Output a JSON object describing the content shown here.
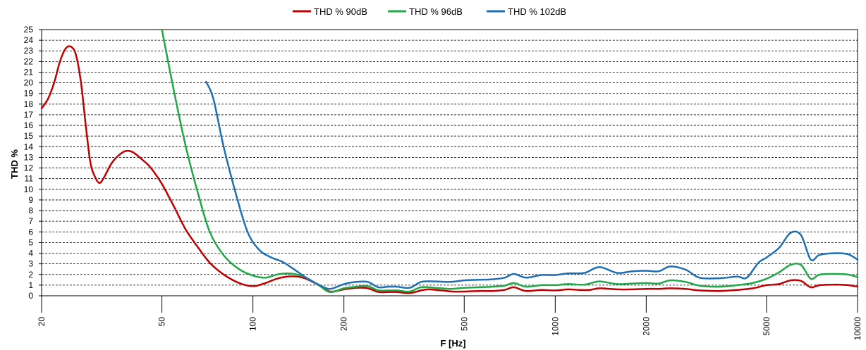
{
  "chart_data": {
    "type": "line",
    "xlabel": "F [Hz]",
    "ylabel": "THD %",
    "xscale": "log",
    "xlim": [
      20,
      10000
    ],
    "ylim": [
      0,
      25
    ],
    "xticks": [
      20,
      50,
      100,
      200,
      500,
      1000,
      2000,
      5000,
      10000
    ],
    "yticks": [
      0,
      1,
      2,
      3,
      4,
      5,
      6,
      7,
      8,
      9,
      10,
      11,
      12,
      13,
      14,
      15,
      16,
      17,
      18,
      19,
      20,
      21,
      22,
      23,
      24,
      25
    ],
    "grid": "horizontal-dashed",
    "legend_position": "top-center",
    "series": [
      {
        "name": "THD % 90dB",
        "color": "#c00000",
        "points": [
          [
            20,
            17.6
          ],
          [
            21,
            18.5
          ],
          [
            22,
            20
          ],
          [
            23,
            22
          ],
          [
            24,
            23.2
          ],
          [
            25,
            23.4
          ],
          [
            26,
            22.6
          ],
          [
            27,
            20
          ],
          [
            28,
            16
          ],
          [
            29,
            12.5
          ],
          [
            30,
            11.2
          ],
          [
            31,
            10.6
          ],
          [
            32,
            11.0
          ],
          [
            34,
            12.4
          ],
          [
            36,
            13.2
          ],
          [
            38,
            13.6
          ],
          [
            40,
            13.5
          ],
          [
            43,
            12.8
          ],
          [
            46,
            12
          ],
          [
            50,
            10.5
          ],
          [
            55,
            8.3
          ],
          [
            60,
            6.2
          ],
          [
            66,
            4.5
          ],
          [
            72,
            3.1
          ],
          [
            80,
            2
          ],
          [
            90,
            1.2
          ],
          [
            100,
            0.9
          ],
          [
            110,
            1.2
          ],
          [
            120,
            1.6
          ],
          [
            130,
            1.8
          ],
          [
            140,
            1.8
          ],
          [
            150,
            1.6
          ],
          [
            165,
            1
          ],
          [
            180,
            0.4
          ],
          [
            200,
            0.6
          ],
          [
            220,
            0.75
          ],
          [
            240,
            0.7
          ],
          [
            260,
            0.35
          ],
          [
            280,
            0.35
          ],
          [
            300,
            0.35
          ],
          [
            330,
            0.25
          ],
          [
            360,
            0.5
          ],
          [
            380,
            0.6
          ],
          [
            420,
            0.5
          ],
          [
            460,
            0.4
          ],
          [
            500,
            0.4
          ],
          [
            560,
            0.45
          ],
          [
            620,
            0.45
          ],
          [
            680,
            0.55
          ],
          [
            730,
            0.8
          ],
          [
            800,
            0.45
          ],
          [
            900,
            0.55
          ],
          [
            1000,
            0.5
          ],
          [
            1100,
            0.6
          ],
          [
            1200,
            0.55
          ],
          [
            1300,
            0.55
          ],
          [
            1400,
            0.7
          ],
          [
            1600,
            0.6
          ],
          [
            1800,
            0.6
          ],
          [
            2000,
            0.65
          ],
          [
            2200,
            0.65
          ],
          [
            2400,
            0.7
          ],
          [
            2700,
            0.65
          ],
          [
            3000,
            0.5
          ],
          [
            3500,
            0.45
          ],
          [
            4000,
            0.55
          ],
          [
            4500,
            0.7
          ],
          [
            5000,
            1
          ],
          [
            5500,
            1.1
          ],
          [
            6000,
            1.45
          ],
          [
            6500,
            1.4
          ],
          [
            7000,
            0.8
          ],
          [
            7500,
            1
          ],
          [
            8500,
            1.05
          ],
          [
            9300,
            1
          ],
          [
            10000,
            0.85
          ]
        ]
      },
      {
        "name": "THD % 96dB",
        "color": "#1fa845",
        "points": [
          [
            50,
            25
          ],
          [
            55,
            19
          ],
          [
            60,
            14
          ],
          [
            66,
            9.5
          ],
          [
            72,
            6
          ],
          [
            80,
            3.8
          ],
          [
            90,
            2.5
          ],
          [
            100,
            1.9
          ],
          [
            110,
            1.7
          ],
          [
            120,
            2
          ],
          [
            130,
            2.1
          ],
          [
            140,
            2
          ],
          [
            150,
            1.7
          ],
          [
            165,
            1
          ],
          [
            180,
            0.35
          ],
          [
            200,
            0.7
          ],
          [
            220,
            0.85
          ],
          [
            240,
            0.9
          ],
          [
            260,
            0.5
          ],
          [
            280,
            0.5
          ],
          [
            300,
            0.5
          ],
          [
            330,
            0.4
          ],
          [
            360,
            0.8
          ],
          [
            400,
            0.75
          ],
          [
            450,
            0.65
          ],
          [
            500,
            0.75
          ],
          [
            560,
            0.8
          ],
          [
            620,
            0.85
          ],
          [
            680,
            0.95
          ],
          [
            730,
            1.2
          ],
          [
            800,
            0.85
          ],
          [
            900,
            1
          ],
          [
            1000,
            1
          ],
          [
            1100,
            1.1
          ],
          [
            1250,
            1.05
          ],
          [
            1400,
            1.35
          ],
          [
            1600,
            1.1
          ],
          [
            1800,
            1.15
          ],
          [
            2000,
            1.2
          ],
          [
            2200,
            1.15
          ],
          [
            2400,
            1.45
          ],
          [
            2700,
            1.3
          ],
          [
            3000,
            0.95
          ],
          [
            3500,
            0.85
          ],
          [
            4000,
            1
          ],
          [
            4500,
            1.2
          ],
          [
            5000,
            1.6
          ],
          [
            5500,
            2.2
          ],
          [
            6000,
            2.9
          ],
          [
            6500,
            2.9
          ],
          [
            7000,
            1.6
          ],
          [
            7500,
            2
          ],
          [
            8500,
            2.05
          ],
          [
            9300,
            2
          ],
          [
            10000,
            1.75
          ]
        ]
      },
      {
        "name": "THD % 102dB",
        "color": "#1f6fb4",
        "points": [
          [
            70,
            20.1
          ],
          [
            74,
            18.5
          ],
          [
            80,
            14
          ],
          [
            88,
            9.5
          ],
          [
            96,
            6
          ],
          [
            105,
            4.3
          ],
          [
            115,
            3.6
          ],
          [
            125,
            3.2
          ],
          [
            135,
            2.6
          ],
          [
            150,
            1.7
          ],
          [
            165,
            1.05
          ],
          [
            180,
            0.65
          ],
          [
            200,
            1.1
          ],
          [
            220,
            1.3
          ],
          [
            240,
            1.3
          ],
          [
            260,
            0.8
          ],
          [
            280,
            0.85
          ],
          [
            300,
            0.85
          ],
          [
            330,
            0.75
          ],
          [
            360,
            1.3
          ],
          [
            400,
            1.35
          ],
          [
            450,
            1.3
          ],
          [
            500,
            1.45
          ],
          [
            560,
            1.5
          ],
          [
            620,
            1.55
          ],
          [
            680,
            1.7
          ],
          [
            730,
            2.05
          ],
          [
            800,
            1.7
          ],
          [
            900,
            1.95
          ],
          [
            1000,
            1.95
          ],
          [
            1100,
            2.1
          ],
          [
            1250,
            2.15
          ],
          [
            1400,
            2.7
          ],
          [
            1600,
            2.15
          ],
          [
            1800,
            2.3
          ],
          [
            2000,
            2.35
          ],
          [
            2200,
            2.3
          ],
          [
            2400,
            2.75
          ],
          [
            2700,
            2.45
          ],
          [
            3000,
            1.7
          ],
          [
            3500,
            1.65
          ],
          [
            4000,
            1.8
          ],
          [
            4300,
            1.7
          ],
          [
            4700,
            3.1
          ],
          [
            5000,
            3.6
          ],
          [
            5500,
            4.5
          ],
          [
            6000,
            5.9
          ],
          [
            6500,
            5.7
          ],
          [
            7000,
            3.4
          ],
          [
            7500,
            3.85
          ],
          [
            8500,
            4
          ],
          [
            9300,
            3.9
          ],
          [
            10000,
            3.4
          ]
        ]
      }
    ]
  }
}
